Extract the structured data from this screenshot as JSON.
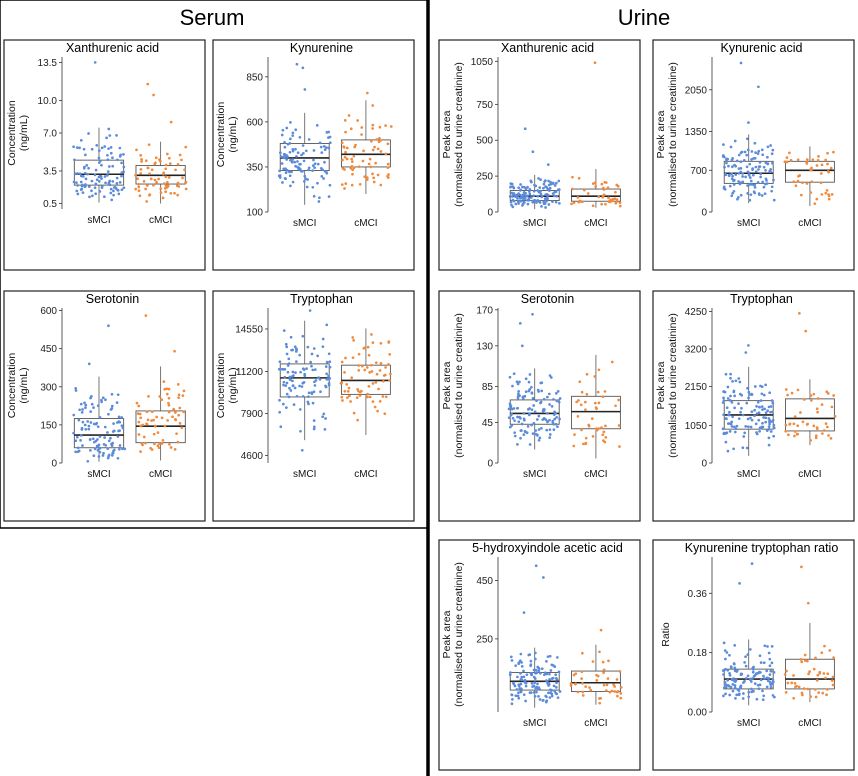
{
  "sections": {
    "serum": "Serum",
    "urine": "Urine"
  },
  "colors": {
    "sMCI": "#5b8bd9",
    "cMCI": "#f08a3c",
    "box": "#555555"
  },
  "chart_data": [
    {
      "id": "serum-xanthurenic",
      "type": "box",
      "title": "Xanthurenic acid",
      "ylabel": [
        "Concentration",
        "(ng/mL)"
      ],
      "ylim": [
        0,
        14
      ],
      "yticks": [
        0.5,
        3.5,
        7.0,
        10.0,
        13.5
      ],
      "ytick_labels": [
        "0.5",
        "3.5",
        "7.0",
        "10.0",
        "13.5"
      ],
      "categories": [
        "sMCI",
        "cMCI"
      ],
      "series": [
        {
          "name": "sMCI",
          "n": 110,
          "q1": 2.2,
          "median": 3.2,
          "q3": 4.5,
          "lo": 0.6,
          "hi": 7.5,
          "outliers": [
            13.5
          ]
        },
        {
          "name": "cMCI",
          "n": 70,
          "q1": 2.3,
          "median": 3.1,
          "q3": 4.0,
          "lo": 0.5,
          "hi": 6.2,
          "outliers": [
            11.5,
            10.5,
            8.0
          ]
        }
      ]
    },
    {
      "id": "serum-kynurenine",
      "type": "box",
      "title": "Kynurenine",
      "ylabel": [
        "Concentration",
        "(ng/mL)"
      ],
      "ylim": [
        100,
        960
      ],
      "yticks": [
        100,
        350,
        600,
        850
      ],
      "ytick_labels": [
        "100",
        "350",
        "600",
        "850"
      ],
      "categories": [
        "sMCI",
        "cMCI"
      ],
      "series": [
        {
          "name": "sMCI",
          "n": 110,
          "q1": 330,
          "median": 400,
          "q3": 480,
          "lo": 140,
          "hi": 650,
          "outliers": [
            920,
            900,
            780
          ]
        },
        {
          "name": "cMCI",
          "n": 70,
          "q1": 350,
          "median": 420,
          "q3": 500,
          "lo": 200,
          "hi": 720,
          "outliers": [
            760
          ]
        }
      ]
    },
    {
      "id": "urine-xanthurenic",
      "type": "box",
      "title": "Xanthurenic acid",
      "ylabel": [
        "Peak area",
        "(normalised to urine creatinine)"
      ],
      "ylim": [
        0,
        1080
      ],
      "yticks": [
        0,
        250,
        500,
        750,
        1050
      ],
      "ytick_labels": [
        "0",
        "250",
        "500",
        "750",
        "1050"
      ],
      "categories": [
        "sMCI",
        "cMCI"
      ],
      "series": [
        {
          "name": "sMCI",
          "n": 130,
          "q1": 80,
          "median": 110,
          "q3": 150,
          "lo": 20,
          "hi": 260,
          "outliers": [
            580,
            420,
            330
          ]
        },
        {
          "name": "cMCI",
          "n": 45,
          "q1": 75,
          "median": 110,
          "q3": 160,
          "lo": 30,
          "hi": 300,
          "outliers": [
            1040
          ]
        }
      ]
    },
    {
      "id": "urine-kynurenic",
      "type": "box",
      "title": "Kynurenic acid",
      "ylabel": [
        "Peak area",
        "(normalised to urine creatinine)"
      ],
      "ylim": [
        0,
        2600
      ],
      "yticks": [
        0,
        700,
        1350,
        2050
      ],
      "ytick_labels": [
        "0",
        "700",
        "1350",
        "2050"
      ],
      "categories": [
        "sMCI",
        "cMCI"
      ],
      "series": [
        {
          "name": "sMCI",
          "n": 130,
          "q1": 480,
          "median": 650,
          "q3": 850,
          "lo": 150,
          "hi": 1300,
          "outliers": [
            2500,
            2100,
            1500
          ]
        },
        {
          "name": "cMCI",
          "n": 45,
          "q1": 500,
          "median": 700,
          "q3": 850,
          "lo": 100,
          "hi": 1100,
          "outliers": []
        }
      ]
    },
    {
      "id": "serum-serotonin",
      "type": "box",
      "title": "Serotonin",
      "ylabel": [
        "Concentration",
        "(ng/mL)"
      ],
      "ylim": [
        0,
        610
      ],
      "yticks": [
        0,
        150,
        300,
        450,
        600
      ],
      "ytick_labels": [
        "0",
        "150",
        "300",
        "450",
        "600"
      ],
      "categories": [
        "sMCI",
        "cMCI"
      ],
      "series": [
        {
          "name": "sMCI",
          "n": 110,
          "q1": 60,
          "median": 110,
          "q3": 175,
          "lo": 5,
          "hi": 340,
          "outliers": [
            540,
            390
          ]
        },
        {
          "name": "cMCI",
          "n": 70,
          "q1": 80,
          "median": 145,
          "q3": 205,
          "lo": 10,
          "hi": 380,
          "outliers": [
            580,
            440
          ]
        }
      ]
    },
    {
      "id": "serum-tryptophan",
      "type": "box",
      "title": "Tryptophan",
      "ylabel": [
        "Concentration",
        "(ng/mL)"
      ],
      "ylim": [
        4000,
        16200
      ],
      "yticks": [
        4600,
        7900,
        11200,
        14550
      ],
      "ytick_labels": [
        "4600",
        "7900",
        "11200",
        "14550"
      ],
      "categories": [
        "sMCI",
        "cMCI"
      ],
      "series": [
        {
          "name": "sMCI",
          "n": 110,
          "q1": 9200,
          "median": 10700,
          "q3": 11800,
          "lo": 5800,
          "hi": 15200,
          "outliers": [
            16000,
            5000
          ]
        },
        {
          "name": "cMCI",
          "n": 70,
          "q1": 9400,
          "median": 10500,
          "q3": 11700,
          "lo": 6200,
          "hi": 14600,
          "outliers": []
        }
      ]
    },
    {
      "id": "urine-serotonin",
      "type": "box",
      "title": "Serotonin",
      "ylabel": [
        "Peak area",
        "(normalised to urine creatinine)"
      ],
      "ylim": [
        0,
        172
      ],
      "yticks": [
        0,
        45,
        85,
        130,
        170
      ],
      "ytick_labels": [
        "0",
        "45",
        "85",
        "130",
        "170"
      ],
      "categories": [
        "sMCI",
        "cMCI"
      ],
      "series": [
        {
          "name": "sMCI",
          "n": 130,
          "q1": 43,
          "median": 55,
          "q3": 70,
          "lo": 15,
          "hi": 105,
          "outliers": [
            165,
            155,
            130
          ]
        },
        {
          "name": "cMCI",
          "n": 45,
          "q1": 38,
          "median": 57,
          "q3": 74,
          "lo": 5,
          "hi": 120,
          "outliers": []
        }
      ]
    },
    {
      "id": "urine-tryptophan",
      "type": "box",
      "title": "Tryptophan",
      "ylabel": [
        "Peak area",
        "(normalised to urine creatinine)"
      ],
      "ylim": [
        0,
        4350
      ],
      "yticks": [
        0,
        1050,
        2150,
        3200,
        4250
      ],
      "ytick_labels": [
        "0",
        "1050",
        "2150",
        "3200",
        "4250"
      ],
      "categories": [
        "sMCI",
        "cMCI"
      ],
      "series": [
        {
          "name": "sMCI",
          "n": 130,
          "q1": 950,
          "median": 1350,
          "q3": 1750,
          "lo": 200,
          "hi": 2700,
          "outliers": [
            3300,
            3100
          ]
        },
        {
          "name": "cMCI",
          "n": 45,
          "q1": 900,
          "median": 1250,
          "q3": 1800,
          "lo": 500,
          "hi": 2350,
          "outliers": [
            4200,
            3700
          ]
        }
      ]
    },
    {
      "id": "urine-5hiaa",
      "type": "box",
      "title": "5-hydroxyindole acetic acid",
      "ylabel": [
        "Peak area",
        "(normalised to urine creatinine)"
      ],
      "ylim": [
        0,
        530
      ],
      "yticks": [
        250,
        450
      ],
      "ytick_labels": [
        "250",
        "450"
      ],
      "categories": [
        "sMCI",
        "cMCI"
      ],
      "series": [
        {
          "name": "sMCI",
          "n": 130,
          "q1": 75,
          "median": 105,
          "q3": 135,
          "lo": 15,
          "hi": 220,
          "outliers": [
            500,
            460,
            340
          ]
        },
        {
          "name": "cMCI",
          "n": 45,
          "q1": 70,
          "median": 100,
          "q3": 140,
          "lo": 25,
          "hi": 230,
          "outliers": [
            280
          ]
        }
      ]
    },
    {
      "id": "urine-kyn-trp-ratio",
      "type": "box",
      "title": "Kynurenine tryptophan ratio",
      "ylabel": [
        "Ratio"
      ],
      "ylim": [
        0,
        0.47
      ],
      "yticks": [
        0.0,
        0.18,
        0.36
      ],
      "ytick_labels": [
        "0.00",
        "0.18",
        "0.36"
      ],
      "categories": [
        "sMCI",
        "cMCI"
      ],
      "series": [
        {
          "name": "sMCI",
          "n": 130,
          "q1": 0.07,
          "median": 0.1,
          "q3": 0.13,
          "lo": 0.02,
          "hi": 0.22,
          "outliers": [
            0.45,
            0.39
          ]
        },
        {
          "name": "cMCI",
          "n": 45,
          "q1": 0.07,
          "median": 0.1,
          "q3": 0.16,
          "lo": 0.03,
          "hi": 0.27,
          "outliers": [
            0.44,
            0.33
          ]
        }
      ]
    }
  ]
}
